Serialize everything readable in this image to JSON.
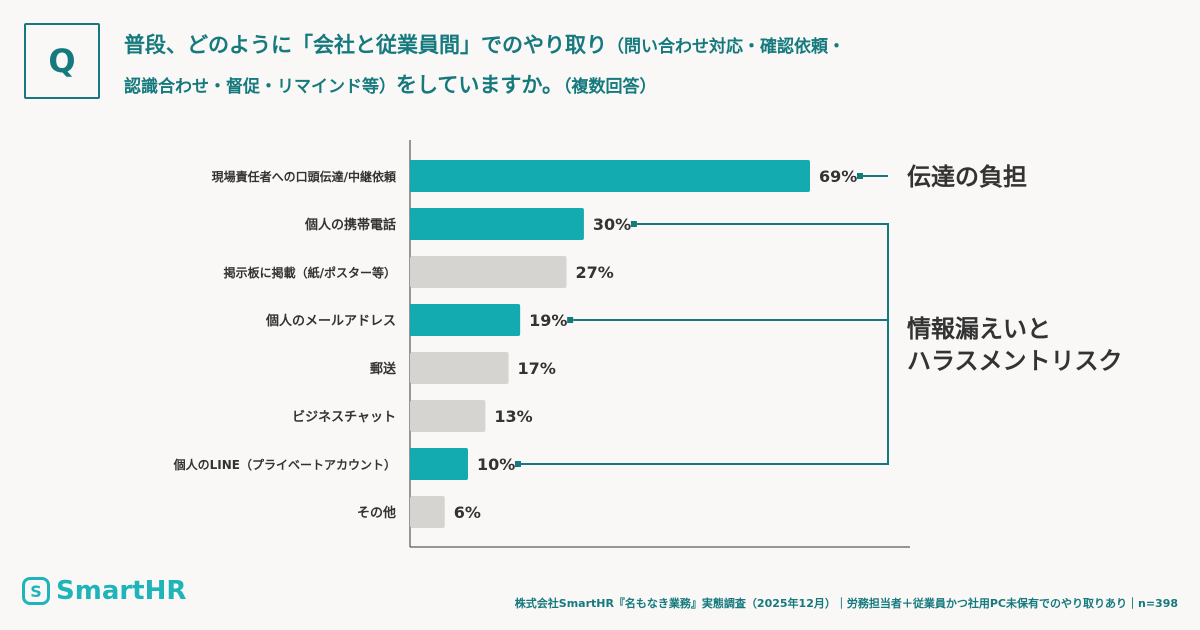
{
  "question": {
    "badge": "Q",
    "title_main_1": "普段、どのように「会社と従業員間」でのやり取り",
    "title_sub_1": "（問い合わせ対応・確認依頼・",
    "title_sub_2": "認識合わせ・督促・リマインド等）",
    "title_main_2": "をしていますか。",
    "title_sub_3": "（複数回答）"
  },
  "chart_data": {
    "type": "bar",
    "orientation": "horizontal",
    "categories": [
      "現場責任者への口頭伝達/中継依頼",
      "個人の携帯電話",
      "掲示板に掲載（紙/ポスター等）",
      "個人のメールアドレス",
      "郵送",
      "ビジネスチャット",
      "個人のLINE（プライベートアカウント）",
      "その他"
    ],
    "values": [
      69,
      30,
      27,
      19,
      17,
      13,
      10,
      6
    ],
    "value_labels": [
      "69%",
      "30%",
      "27%",
      "19%",
      "17%",
      "13%",
      "10%",
      "6%"
    ],
    "highlighted": [
      true,
      true,
      false,
      true,
      false,
      false,
      true,
      false
    ],
    "unit": "%",
    "xlim": [
      0,
      86
    ],
    "grid": false,
    "colors": {
      "highlight": "#13aab0",
      "default": "#d6d4d0",
      "connector": "#15797e"
    },
    "annotations": [
      {
        "text": "伝達の負担",
        "categories": [
          0
        ]
      },
      {
        "text_line_1": "情報漏えいと",
        "text_line_2": "ハラスメントリスク",
        "categories": [
          1,
          3,
          6
        ]
      }
    ]
  },
  "footer": {
    "logo": "SmartHR",
    "source": "株式会社SmartHR『名もなき業務』実態調査（2025年12月）｜労務担当者＋従業員かつ社用PC未保有でのやり取りあり｜n=398"
  }
}
